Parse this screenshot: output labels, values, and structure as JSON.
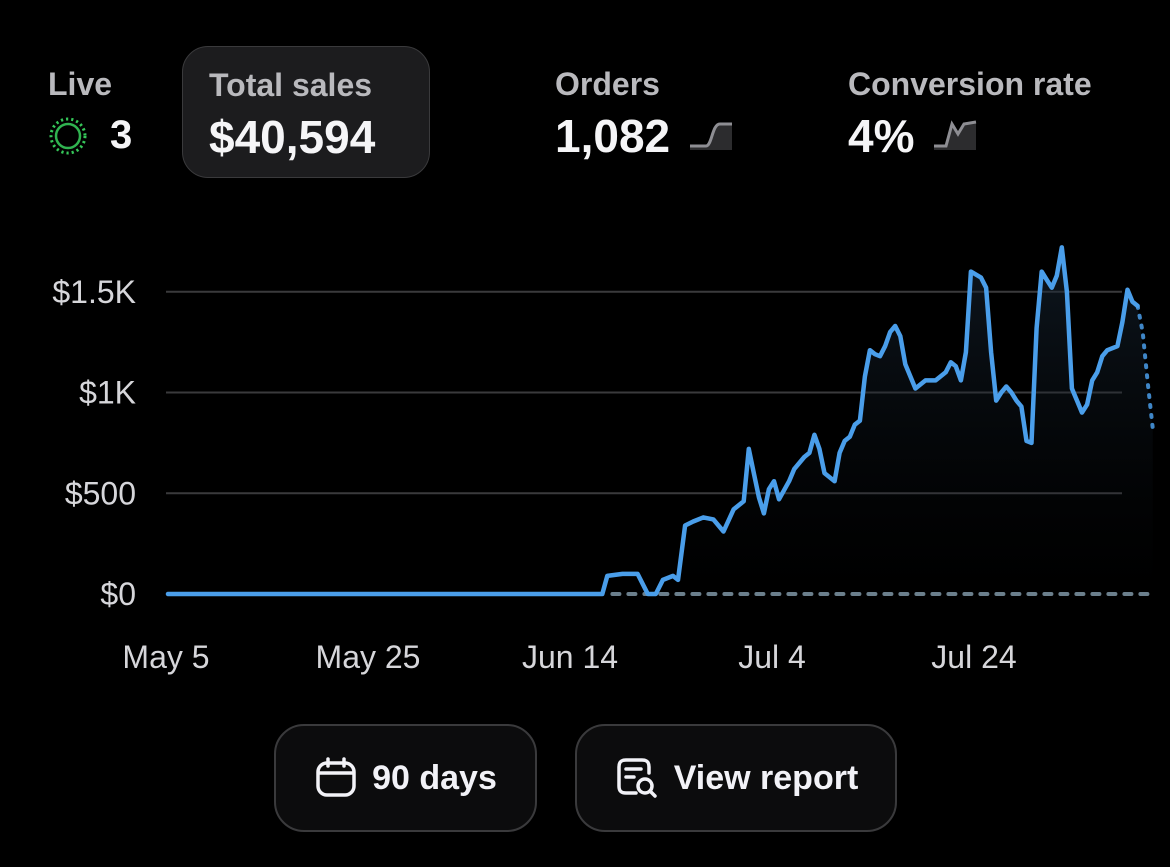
{
  "metrics": {
    "live": {
      "label": "Live",
      "value": "3"
    },
    "total_sales": {
      "label": "Total sales",
      "value": "$40,594"
    },
    "orders": {
      "label": "Orders",
      "value": "1,082"
    },
    "conversion": {
      "label": "Conversion rate",
      "value": "4%"
    }
  },
  "buttons": {
    "range_label": "90 days",
    "report_label": "View report"
  },
  "colors": {
    "line": "#4a9eea",
    "comparison": "#6b7f8c",
    "live_dot": "#35c759",
    "grid": "#3a3a3c"
  },
  "chart_data": {
    "type": "line",
    "title": "",
    "xlabel": "",
    "ylabel": "",
    "y_ticks": [
      0,
      500,
      1000,
      1500
    ],
    "y_tick_labels": [
      "$0",
      "$500",
      "$1K",
      "$1.5K"
    ],
    "ylim": [
      0,
      1800
    ],
    "x_tick_labels": [
      "May 5",
      "May 25",
      "Jun 14",
      "Jul 4",
      "Jul 24"
    ],
    "x_tick_positions": [
      0,
      20,
      40,
      60,
      80
    ],
    "grid": true,
    "series": [
      {
        "style": "solid",
        "points": [
          [
            0,
            0
          ],
          [
            10,
            0
          ],
          [
            20,
            0
          ],
          [
            30,
            0
          ],
          [
            40,
            0
          ],
          [
            42,
            0
          ],
          [
            43,
            0
          ],
          [
            43.5,
            90
          ],
          [
            45,
            100
          ],
          [
            46.5,
            100
          ],
          [
            47.5,
            0
          ],
          [
            48.3,
            0
          ],
          [
            49,
            70
          ],
          [
            50,
            90
          ],
          [
            50.5,
            70
          ],
          [
            51.2,
            340
          ],
          [
            52,
            360
          ],
          [
            53,
            380
          ],
          [
            54,
            370
          ],
          [
            55,
            310
          ],
          [
            56,
            420
          ],
          [
            57,
            460
          ],
          [
            57.5,
            720
          ],
          [
            58,
            600
          ],
          [
            58.5,
            480
          ],
          [
            59,
            400
          ],
          [
            59.5,
            520
          ],
          [
            60,
            560
          ],
          [
            60.5,
            470
          ],
          [
            61.5,
            560
          ],
          [
            62,
            620
          ],
          [
            63,
            680
          ],
          [
            63.5,
            700
          ],
          [
            64,
            790
          ],
          [
            64.5,
            720
          ],
          [
            65,
            600
          ],
          [
            66,
            560
          ],
          [
            66.5,
            700
          ],
          [
            67,
            760
          ],
          [
            67.5,
            780
          ],
          [
            68,
            840
          ],
          [
            68.5,
            860
          ],
          [
            69,
            1080
          ],
          [
            69.5,
            1210
          ],
          [
            70,
            1190
          ],
          [
            70.5,
            1180
          ],
          [
            71,
            1230
          ],
          [
            71.5,
            1300
          ],
          [
            72,
            1330
          ],
          [
            72.5,
            1280
          ],
          [
            73,
            1140
          ],
          [
            74,
            1020
          ],
          [
            75,
            1060
          ],
          [
            76,
            1060
          ],
          [
            77,
            1100
          ],
          [
            77.5,
            1150
          ],
          [
            78,
            1130
          ],
          [
            78.5,
            1060
          ],
          [
            79,
            1200
          ],
          [
            79.5,
            1600
          ],
          [
            80.5,
            1570
          ],
          [
            81,
            1520
          ],
          [
            81.5,
            1200
          ],
          [
            82,
            960
          ],
          [
            82.5,
            1000
          ],
          [
            83,
            1030
          ],
          [
            83.5,
            1000
          ],
          [
            84,
            960
          ],
          [
            84.5,
            930
          ],
          [
            85,
            760
          ],
          [
            85.5,
            750
          ],
          [
            86,
            1320
          ],
          [
            86.5,
            1600
          ],
          [
            87,
            1560
          ],
          [
            87.5,
            1520
          ],
          [
            88,
            1580
          ],
          [
            88.5,
            1720
          ],
          [
            89,
            1500
          ],
          [
            89.5,
            1020
          ],
          [
            90,
            960
          ],
          [
            90.5,
            900
          ],
          [
            91,
            940
          ],
          [
            91.5,
            1060
          ],
          [
            92,
            1100
          ],
          [
            92.5,
            1180
          ],
          [
            93,
            1210
          ],
          [
            94,
            1230
          ],
          [
            94.5,
            1350
          ],
          [
            95,
            1510
          ],
          [
            95.5,
            1450
          ],
          [
            96,
            1430
          ]
        ]
      },
      {
        "style": "dotted",
        "points": [
          [
            96,
            1430
          ],
          [
            96.5,
            1300
          ],
          [
            97,
            1050
          ],
          [
            97.5,
            820
          ]
        ]
      },
      {
        "style": "dashed-comparison",
        "points": [
          [
            44,
            0
          ],
          [
            97.5,
            0
          ]
        ]
      }
    ]
  }
}
